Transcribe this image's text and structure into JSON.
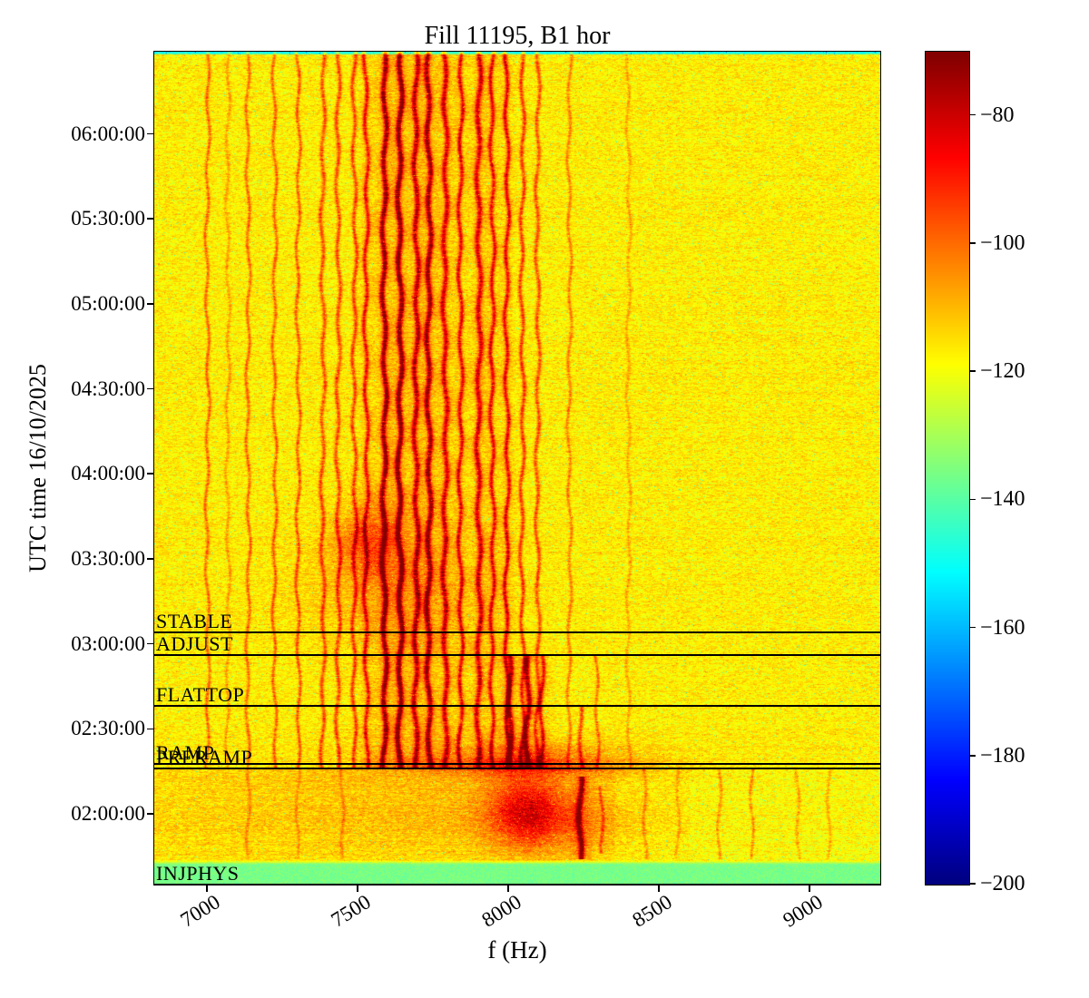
{
  "chart_data": {
    "type": "heatmap",
    "variant": "spectrogram",
    "title": "Fill 11195, B1 hor",
    "xlabel": "f (Hz)",
    "ylabel": "UTC time 16/10/2025",
    "x_unit": "Hz",
    "x_range": [
      6825,
      9235
    ],
    "x_ticks": [
      7000,
      7500,
      8000,
      8500,
      9000
    ],
    "y_range_utc": [
      "01:35:00",
      "06:29:00"
    ],
    "y_ticks_utc": [
      "06:00:00",
      "05:30:00",
      "05:00:00",
      "04:30:00",
      "04:00:00",
      "03:30:00",
      "03:00:00",
      "02:30:00",
      "02:00:00"
    ],
    "grid": false,
    "legend": "none",
    "colormap": "jet",
    "colorbar": {
      "min_db": -200,
      "max_db": -70,
      "ticks": [
        {
          "value": -80,
          "label": "−80"
        },
        {
          "value": -100,
          "label": "−100"
        },
        {
          "value": -120,
          "label": "−120"
        },
        {
          "value": -140,
          "label": "−140"
        },
        {
          "value": -160,
          "label": "−160"
        },
        {
          "value": -180,
          "label": "−180"
        },
        {
          "value": -200,
          "label": "−200"
        }
      ]
    },
    "background_level_db": -117,
    "top_edge_strip_db": -151,
    "injection_floor": {
      "until_utc": "01:43:30",
      "level_db": -136
    },
    "beam_modes": [
      {
        "label": "STABLE",
        "start_utc": "03:04:00"
      },
      {
        "label": "ADJUST",
        "start_utc": "02:56:00"
      },
      {
        "label": "FLATTOP",
        "start_utc": "02:38:00"
      },
      {
        "label": "RAMP",
        "start_utc": "02:17:30"
      },
      {
        "label": "PRERAMP",
        "start_utc": "02:16:00"
      },
      {
        "label": "INJPHYS",
        "start_utc": "01:35:00"
      }
    ],
    "spectral_lines": [
      {
        "f": 7000,
        "peak_db": -100,
        "from": "02:16:00",
        "to": "06:29:00"
      },
      {
        "f": 7068,
        "peak_db": -107,
        "from": "02:16:00",
        "to": "06:29:00"
      },
      {
        "f": 7135,
        "peak_db": -100,
        "from": "02:16:00",
        "to": "06:29:00"
      },
      {
        "f": 7223,
        "peak_db": -99,
        "from": "02:16:00",
        "to": "06:29:00"
      },
      {
        "f": 7301,
        "peak_db": -98,
        "from": "02:16:00",
        "to": "06:29:00"
      },
      {
        "f": 7383,
        "peak_db": -97,
        "from": "02:16:00",
        "to": "06:29:00"
      },
      {
        "f": 7434,
        "peak_db": -96,
        "from": "02:16:00",
        "to": "06:29:00"
      },
      {
        "f": 7488,
        "peak_db": -95,
        "from": "02:16:00",
        "to": "06:29:00"
      },
      {
        "f": 7527,
        "peak_db": -92,
        "from": "02:16:00",
        "to": "06:29:00"
      },
      {
        "f": 7587,
        "peak_db": -79,
        "from": "02:16:00",
        "to": "06:29:00"
      },
      {
        "f": 7639,
        "peak_db": -76,
        "from": "02:16:00",
        "to": "06:29:00"
      },
      {
        "f": 7693,
        "peak_db": -86,
        "from": "02:16:00",
        "to": "06:29:00"
      },
      {
        "f": 7735,
        "peak_db": -81,
        "from": "02:16:00",
        "to": "06:29:00"
      },
      {
        "f": 7789,
        "peak_db": -88,
        "from": "02:16:00",
        "to": "06:29:00"
      },
      {
        "f": 7840,
        "peak_db": -90,
        "from": "02:16:00",
        "to": "06:29:00"
      },
      {
        "f": 7901,
        "peak_db": -88,
        "from": "02:16:00",
        "to": "06:29:00"
      },
      {
        "f": 7946,
        "peak_db": -91,
        "from": "02:16:00",
        "to": "06:29:00"
      },
      {
        "f": 7994,
        "peak_db": -90,
        "from": "02:16:00",
        "to": "06:29:00"
      },
      {
        "f": 8045,
        "peak_db": -94,
        "from": "02:16:00",
        "to": "06:29:00"
      },
      {
        "f": 8096,
        "peak_db": -97,
        "from": "02:16:00",
        "to": "06:29:00"
      },
      {
        "f": 8202,
        "peak_db": -103,
        "from": "02:16:00",
        "to": "06:29:00"
      },
      {
        "f": 8398,
        "peak_db": -108,
        "from": "02:16:00",
        "to": "06:29:00"
      },
      {
        "f": 8002,
        "peak_db": -86,
        "from": "02:16:00",
        "to": "02:56:00"
      },
      {
        "f": 8062,
        "peak_db": -83,
        "from": "02:16:00",
        "to": "02:56:00"
      },
      {
        "f": 8112,
        "peak_db": -92,
        "from": "02:16:00",
        "to": "02:56:00"
      },
      {
        "f": 8240,
        "peak_db": -96,
        "from": "02:16:00",
        "to": "02:38:00"
      },
      {
        "f": 8292,
        "peak_db": -101,
        "from": "02:16:00",
        "to": "02:56:00"
      },
      {
        "f": 8240,
        "peak_db": -80,
        "from": "01:44:00",
        "to": "02:13:00"
      },
      {
        "f": 8310,
        "peak_db": -102,
        "from": "01:46:00",
        "to": "02:10:00"
      },
      {
        "f": 8450,
        "peak_db": -106,
        "from": "01:44:00",
        "to": "02:16:00"
      },
      {
        "f": 8560,
        "peak_db": -108,
        "from": "01:44:00",
        "to": "02:16:00"
      },
      {
        "f": 8700,
        "peak_db": -105,
        "from": "01:44:00",
        "to": "02:16:00"
      },
      {
        "f": 8810,
        "peak_db": -104,
        "from": "01:44:00",
        "to": "02:16:00"
      },
      {
        "f": 8960,
        "peak_db": -107,
        "from": "01:44:00",
        "to": "02:16:00"
      },
      {
        "f": 9060,
        "peak_db": -108,
        "from": "01:44:00",
        "to": "02:16:00"
      },
      {
        "f": 7135,
        "peak_db": -107,
        "from": "01:44:00",
        "to": "02:16:00"
      },
      {
        "f": 7301,
        "peak_db": -108,
        "from": "01:44:00",
        "to": "02:16:00"
      },
      {
        "f": 7450,
        "peak_db": -108,
        "from": "01:44:00",
        "to": "02:16:00"
      }
    ],
    "blobs": [
      {
        "f": 7530,
        "t": "03:36:00",
        "f_sigma_hz": 75,
        "t_sigma_min": 9,
        "boost_db": 15
      },
      {
        "f": 7600,
        "t": "03:20:00",
        "f_sigma_hz": 220,
        "t_sigma_min": 16,
        "boost_db": 6
      },
      {
        "f": 8060,
        "t": "02:02:00",
        "f_sigma_hz": 85,
        "t_sigma_min": 9,
        "boost_db": 24
      },
      {
        "f": 8150,
        "t": "01:57:00",
        "f_sigma_hz": 160,
        "t_sigma_min": 7,
        "boost_db": 10
      },
      {
        "f": 8050,
        "t": "02:16:30",
        "f_sigma_hz": 290,
        "t_sigma_min": 2.2,
        "boost_db": 15
      },
      {
        "f": 8100,
        "t": "02:21:00",
        "f_sigma_hz": 210,
        "t_sigma_min": 3.5,
        "boost_db": 10
      },
      {
        "f": 7750,
        "t": "02:06:00",
        "f_sigma_hz": 450,
        "t_sigma_min": 14,
        "boost_db": 4
      }
    ]
  },
  "colors": {
    "text": "#000000",
    "beam_mode_lines": "#000000",
    "figure_background": "#ffffff"
  }
}
